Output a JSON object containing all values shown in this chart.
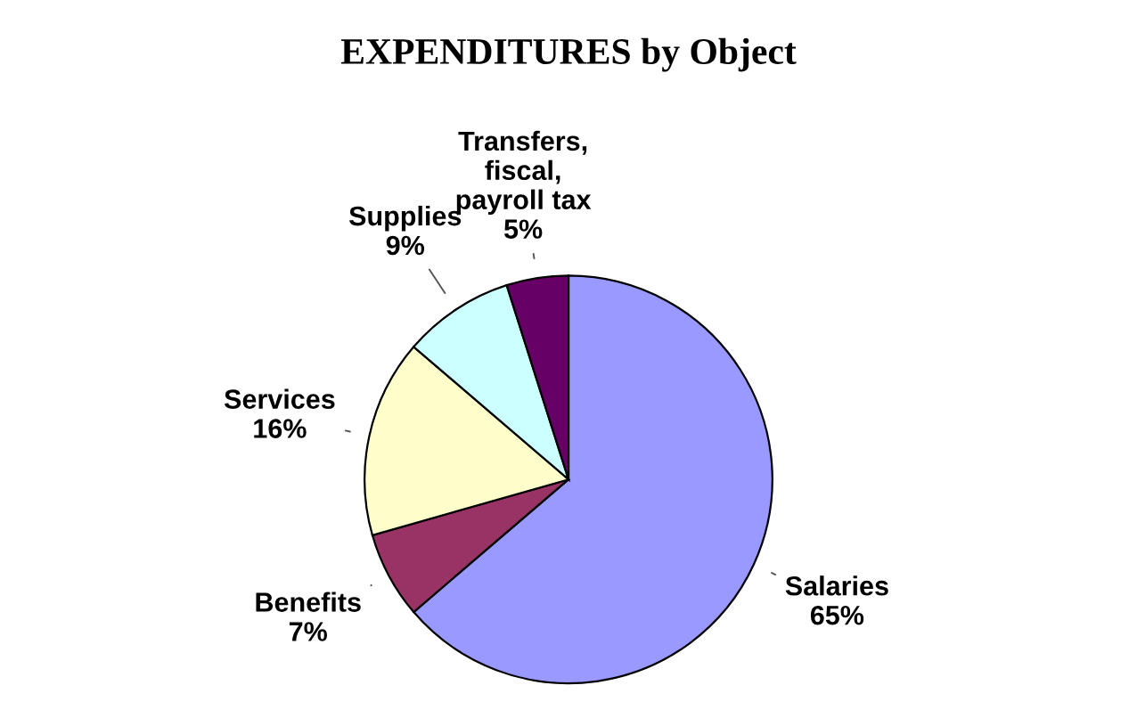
{
  "chart_data": {
    "type": "pie",
    "title": "EXPENDITURES by Object",
    "categories": [
      "Salaries",
      "Benefits",
      "Services",
      "Supplies",
      "Transfers,\nfiscal,\npayroll tax"
    ],
    "values": [
      65,
      7,
      16,
      9,
      5
    ],
    "value_labels": [
      "65%",
      "7%",
      "16%",
      "9%",
      "5%"
    ],
    "colors": [
      "#9999ff",
      "#993366",
      "#ffffcc",
      "#ccffff",
      "#660066"
    ]
  }
}
